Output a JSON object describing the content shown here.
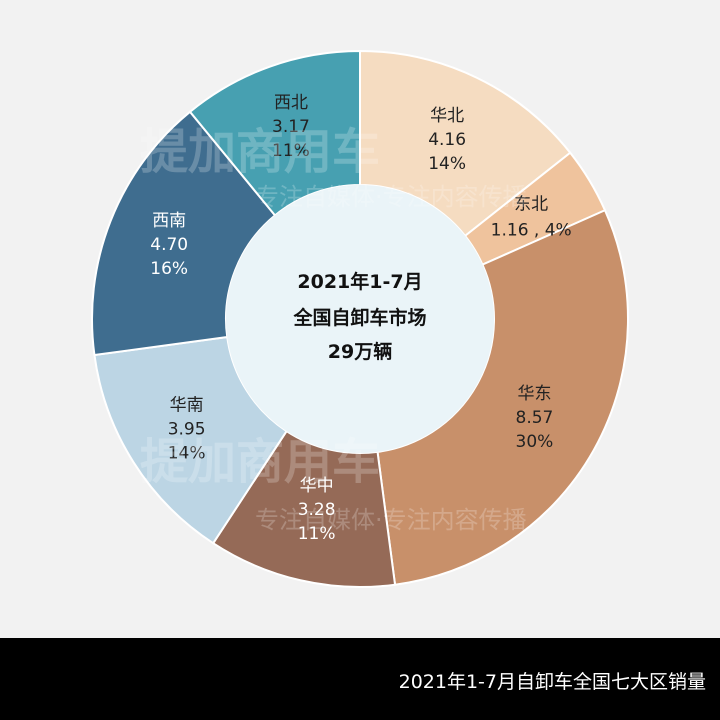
{
  "chart_data": {
    "type": "pie",
    "donut": true,
    "center_text": [
      "2021年1-7月",
      "全国自卸车市场",
      "29万辆"
    ],
    "categories": [
      "华北",
      "东北",
      "华东",
      "华中",
      "华南",
      "西南",
      "西北"
    ],
    "values": [
      4.16,
      1.16,
      8.57,
      3.28,
      3.95,
      4.7,
      3.17
    ],
    "value_labels": [
      "4.16",
      "1.16",
      "8.57",
      "3.28",
      "3.95",
      "4.70",
      "3.17"
    ],
    "percent_labels": [
      "14%",
      "4%",
      "30%",
      "11%",
      "14%",
      "16%",
      "11%"
    ],
    "colors": [
      "#f5dcc1",
      "#efc39d",
      "#c8906a",
      "#956a57",
      "#bcd5e4",
      "#3f6d8f",
      "#47a0b1"
    ],
    "label_colors": [
      "#222222",
      "#222222",
      "#222222",
      "#ffffff",
      "#222222",
      "#ffffff",
      "#222222"
    ],
    "hole_color": "#eaf4f8",
    "start_angle_deg": 0,
    "direction": "clockwise"
  },
  "caption": "2021年1-7月自卸车全国七大区销量",
  "watermark": {
    "logo_text": "提加商用车",
    "slogan": "专注自媒体·专注内容传播"
  }
}
